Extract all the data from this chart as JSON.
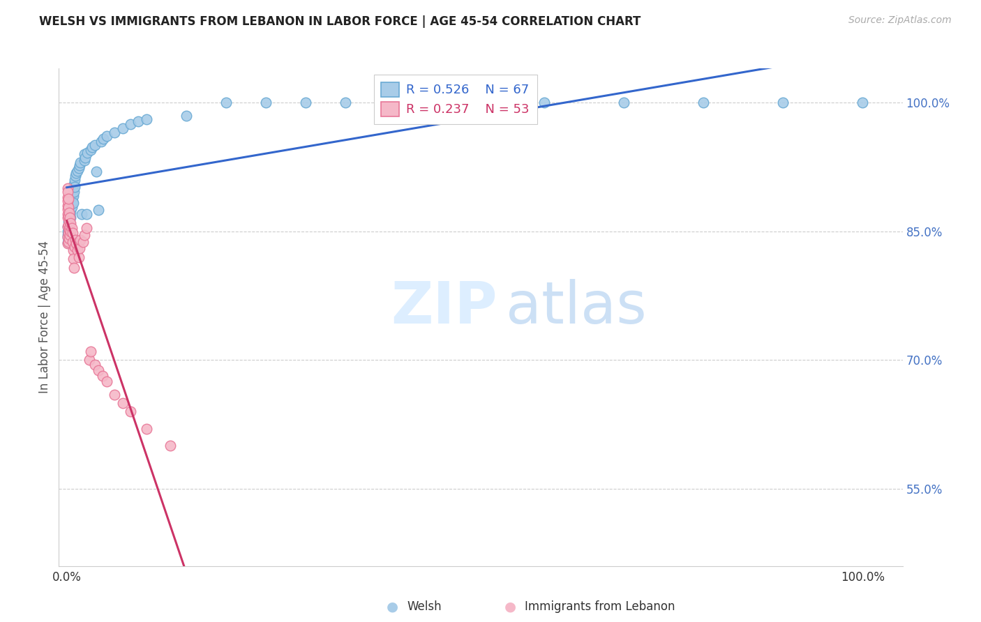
{
  "title": "WELSH VS IMMIGRANTS FROM LEBANON IN LABOR FORCE | AGE 45-54 CORRELATION CHART",
  "source": "Source: ZipAtlas.com",
  "ylabel": "In Labor Force | Age 45-54",
  "welsh_R": 0.526,
  "welsh_N": 67,
  "lebanon_R": 0.237,
  "lebanon_N": 53,
  "legend_welsh": "Welsh",
  "legend_lebanon": "Immigrants from Lebanon",
  "welsh_color": "#a8cce8",
  "lebanon_color": "#f5b8c8",
  "welsh_edge": "#6aaad4",
  "lebanon_edge": "#e87898",
  "trend_welsh_color": "#3366cc",
  "trend_lebanon_color": "#cc3366",
  "welsh_x": [
    0.001,
    0.001,
    0.001,
    0.001,
    0.001,
    0.002,
    0.002,
    0.002,
    0.002,
    0.003,
    0.003,
    0.003,
    0.003,
    0.004,
    0.004,
    0.004,
    0.005,
    0.005,
    0.005,
    0.006,
    0.006,
    0.007,
    0.007,
    0.008,
    0.008,
    0.008,
    0.009,
    0.009,
    0.01,
    0.01,
    0.011,
    0.012,
    0.013,
    0.015,
    0.016,
    0.017,
    0.019,
    0.022,
    0.022,
    0.023,
    0.025,
    0.026,
    0.03,
    0.032,
    0.035,
    0.037,
    0.04,
    0.043,
    0.046,
    0.05,
    0.06,
    0.07,
    0.08,
    0.09,
    0.1,
    0.15,
    0.2,
    0.25,
    0.3,
    0.35,
    0.4,
    0.5,
    0.6,
    0.7,
    0.8,
    0.9,
    1.0
  ],
  "welsh_y": [
    0.846,
    0.85,
    0.856,
    0.843,
    0.837,
    0.861,
    0.855,
    0.848,
    0.841,
    0.87,
    0.865,
    0.858,
    0.852,
    0.875,
    0.868,
    0.86,
    0.882,
    0.873,
    0.866,
    0.888,
    0.878,
    0.893,
    0.885,
    0.899,
    0.891,
    0.883,
    0.905,
    0.896,
    0.91,
    0.902,
    0.915,
    0.918,
    0.921,
    0.924,
    0.927,
    0.93,
    0.87,
    0.933,
    0.94,
    0.936,
    0.87,
    0.942,
    0.945,
    0.948,
    0.951,
    0.92,
    0.875,
    0.955,
    0.958,
    0.961,
    0.965,
    0.97,
    0.975,
    0.978,
    0.981,
    0.985,
    1.0,
    1.0,
    1.0,
    1.0,
    1.0,
    1.0,
    1.0,
    1.0,
    1.0,
    1.0,
    1.0
  ],
  "lebanon_x": [
    0.001,
    0.001,
    0.001,
    0.001,
    0.001,
    0.001,
    0.001,
    0.001,
    0.001,
    0.001,
    0.001,
    0.002,
    0.002,
    0.002,
    0.002,
    0.002,
    0.002,
    0.003,
    0.003,
    0.003,
    0.003,
    0.004,
    0.004,
    0.004,
    0.005,
    0.005,
    0.006,
    0.007,
    0.007,
    0.008,
    0.008,
    0.009,
    0.01,
    0.011,
    0.012,
    0.013,
    0.015,
    0.016,
    0.017,
    0.02,
    0.022,
    0.025,
    0.028,
    0.03,
    0.035,
    0.04,
    0.045,
    0.05,
    0.06,
    0.07,
    0.08,
    0.1,
    0.13
  ],
  "lebanon_y": [
    0.87,
    0.88,
    0.89,
    0.9,
    0.856,
    0.843,
    0.866,
    0.876,
    0.886,
    0.896,
    0.836,
    0.868,
    0.858,
    0.878,
    0.888,
    0.848,
    0.838,
    0.872,
    0.862,
    0.852,
    0.842,
    0.866,
    0.856,
    0.846,
    0.86,
    0.85,
    0.854,
    0.848,
    0.838,
    0.828,
    0.818,
    0.808,
    0.832,
    0.84,
    0.836,
    0.828,
    0.82,
    0.83,
    0.84,
    0.838,
    0.846,
    0.854,
    0.7,
    0.71,
    0.695,
    0.688,
    0.682,
    0.675,
    0.66,
    0.65,
    0.64,
    0.62,
    0.6
  ],
  "ytick_vals": [
    0.5,
    0.55,
    0.6,
    0.65,
    0.7,
    0.75,
    0.8,
    0.85,
    0.9,
    0.95,
    1.0
  ],
  "grid_lines": [
    0.55,
    0.7,
    0.85,
    1.0
  ],
  "ymin": 0.46,
  "ymax": 1.04,
  "xmin": -0.01,
  "xmax": 1.05
}
